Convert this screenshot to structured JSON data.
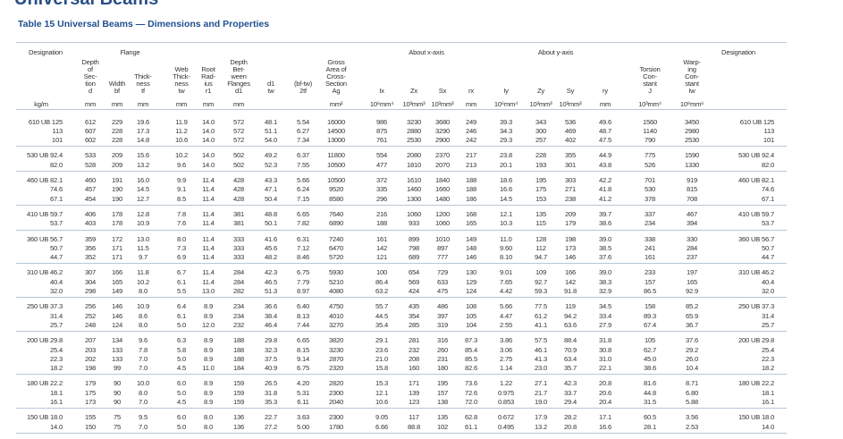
{
  "header": {
    "top_title": "Universal Beams",
    "title": "Table 15 Universal Beams — Dimensions and Properties"
  },
  "table": {
    "columns": [
      {
        "lines": [
          "Designation"
        ]
      },
      {
        "lines": [
          "Depth",
          "of",
          "Sec-",
          "tion",
          "d"
        ]
      },
      {
        "group": "Flange",
        "columns": [
          {
            "lines": [
              "Width",
              "bf"
            ]
          },
          {
            "lines": [
              "Thick-",
              "ness",
              "tf"
            ]
          }
        ]
      },
      {
        "lines": [
          "Web",
          "Thick-",
          "ness",
          "tw"
        ]
      },
      {
        "lines": [
          "Root",
          "Rad-",
          "ius",
          "r1"
        ]
      },
      {
        "lines": [
          "Depth",
          "Bet-",
          "ween",
          "Flanges",
          "d1"
        ]
      },
      {
        "lines": [
          "d1",
          "tw"
        ]
      },
      {
        "lines": [
          "(bf-tw)",
          "2tf"
        ]
      },
      {
        "lines": [
          "Gross",
          "Area of",
          "Cross-",
          "Section",
          "Ag"
        ]
      },
      {
        "group": "About x-axis",
        "columns": [
          {
            "lines": [
              "Ix"
            ]
          },
          {
            "lines": [
              "Zx"
            ]
          },
          {
            "lines": [
              "Sx"
            ]
          },
          {
            "lines": [
              "rx"
            ]
          }
        ]
      },
      {
        "group": "About y-axis",
        "columns": [
          {
            "lines": [
              "Iy"
            ]
          },
          {
            "lines": [
              "Zy"
            ]
          },
          {
            "lines": [
              "Sy"
            ]
          },
          {
            "lines": [
              "ry"
            ]
          }
        ]
      },
      {
        "lines": [
          "Torsion",
          "Con-",
          "stant",
          "J"
        ]
      },
      {
        "lines": [
          "Warp-",
          "ing",
          "Con-",
          "stant",
          "Iw"
        ]
      },
      {
        "lines": [
          "Designation"
        ]
      }
    ],
    "units": [
      "kg/m",
      "mm",
      "mm",
      "mm",
      "mm",
      "mm",
      "mm",
      null,
      null,
      "mm²",
      "10⁶mm⁴",
      "10³mm³",
      "10³mm³",
      "mm",
      "10⁶mm⁴",
      "10³mm³",
      "10³mm³",
      "mm",
      "10³mm⁴",
      "10⁹mm⁶",
      null
    ],
    "groups": [
      {
        "rows": [
          [
            "610 UB 125",
            "612",
            "229",
            "19.6",
            "11.9",
            "14.0",
            "572",
            "48.1",
            "5.54",
            "16000",
            "986",
            "3230",
            "3680",
            "249",
            "39.3",
            "343",
            "536",
            "49.6",
            "1560",
            "3450",
            "610 UB 125"
          ],
          [
            "113",
            "607",
            "228",
            "17.3",
            "11.2",
            "14.0",
            "572",
            "51.1",
            "6.27",
            "14500",
            "875",
            "2880",
            "3290",
            "246",
            "34.3",
            "300",
            "469",
            "48.7",
            "1140",
            "2980",
            "113"
          ],
          [
            "101",
            "602",
            "228",
            "14.8",
            "10.6",
            "14.0",
            "572",
            "54.0",
            "7.34",
            "13000",
            "761",
            "2530",
            "2900",
            "242",
            "29.3",
            "257",
            "402",
            "47.5",
            "790",
            "2530",
            "101"
          ]
        ]
      },
      {
        "rows": [
          [
            "530 UB 92.4",
            "533",
            "209",
            "15.6",
            "10.2",
            "14.0",
            "502",
            "49.2",
            "6.37",
            "11800",
            "554",
            "2080",
            "2370",
            "217",
            "23.8",
            "228",
            "355",
            "44.9",
            "775",
            "1590",
            "530 UB 92.4"
          ],
          [
            "82.0",
            "528",
            "209",
            "13.2",
            "9.6",
            "14.0",
            "502",
            "52.3",
            "7.55",
            "10500",
            "477",
            "1810",
            "2070",
            "213",
            "20.1",
            "193",
            "301",
            "43.8",
            "526",
            "1330",
            "82.0"
          ]
        ]
      },
      {
        "rows": [
          [
            "460 UB 82.1",
            "460",
            "191",
            "16.0",
            "9.9",
            "11.4",
            "428",
            "43.3",
            "5.66",
            "10500",
            "372",
            "1610",
            "1840",
            "188",
            "18.6",
            "195",
            "303",
            "42.2",
            "701",
            "919",
            "460 UB 82.1"
          ],
          [
            "74.6",
            "457",
            "190",
            "14.5",
            "9.1",
            "11.4",
            "428",
            "47.1",
            "6.24",
            "9520",
            "335",
            "1460",
            "1660",
            "188",
            "16.6",
            "175",
            "271",
            "41.8",
            "530",
            "815",
            "74.6"
          ],
          [
            "67.1",
            "454",
            "190",
            "12.7",
            "8.5",
            "11.4",
            "428",
            "50.4",
            "7.15",
            "8580",
            "296",
            "1300",
            "1480",
            "186",
            "14.5",
            "153",
            "238",
            "41.2",
            "378",
            "708",
            "67.1"
          ]
        ]
      },
      {
        "rows": [
          [
            "410 UB 59.7",
            "406",
            "178",
            "12.8",
            "7.8",
            "11.4",
            "381",
            "48.8",
            "6.65",
            "7640",
            "216",
            "1060",
            "1200",
            "168",
            "12.1",
            "135",
            "209",
            "39.7",
            "337",
            "467",
            "410 UB 59.7"
          ],
          [
            "53.7",
            "403",
            "178",
            "10.9",
            "7.6",
            "11.4",
            "381",
            "50.1",
            "7.82",
            "6890",
            "188",
            "933",
            "1060",
            "165",
            "10.3",
            "115",
            "179",
            "38.6",
            "234",
            "394",
            "53.7"
          ]
        ]
      },
      {
        "rows": [
          [
            "360 UB 56.7",
            "359",
            "172",
            "13.0",
            "8.0",
            "11.4",
            "333",
            "41.6",
            "6.31",
            "7240",
            "161",
            "899",
            "1010",
            "149",
            "11.0",
            "128",
            "198",
            "39.0",
            "338",
            "330",
            "360 UB 56.7"
          ],
          [
            "50.7",
            "356",
            "171",
            "11.5",
            "7.3",
            "11.4",
            "333",
            "45.6",
            "7.12",
            "6470",
            "142",
            "798",
            "897",
            "148",
            "9.60",
            "112",
            "173",
            "38.5",
            "241",
            "284",
            "50.7"
          ],
          [
            "44.7",
            "352",
            "171",
            "9.7",
            "6.9",
            "11.4",
            "333",
            "48.2",
            "8.46",
            "5720",
            "121",
            "689",
            "777",
            "146",
            "8.10",
            "94.7",
            "146",
            "37.6",
            "161",
            "237",
            "44.7"
          ]
        ]
      },
      {
        "rows": [
          [
            "310 UB 46.2",
            "307",
            "166",
            "11.8",
            "6.7",
            "11.4",
            "284",
            "42.3",
            "6.75",
            "5930",
            "100",
            "654",
            "729",
            "130",
            "9.01",
            "109",
            "166",
            "39.0",
            "233",
            "197",
            "310 UB 46.2"
          ],
          [
            "40.4",
            "304",
            "165",
            "10.2",
            "6.1",
            "11.4",
            "284",
            "46.5",
            "7.79",
            "5210",
            "86.4",
            "569",
            "633",
            "129",
            "7.65",
            "92.7",
            "142",
            "38.3",
            "157",
            "165",
            "40.4"
          ],
          [
            "32.0",
            "298",
            "149",
            "8.0",
            "5.5",
            "13.0",
            "282",
            "51.3",
            "8.97",
            "4080",
            "63.2",
            "424",
            "475",
            "124",
            "4.42",
            "59.3",
            "91.8",
            "32.9",
            "86.5",
            "92.9",
            "32.0"
          ]
        ]
      },
      {
        "rows": [
          [
            "250 UB 37.3",
            "256",
            "146",
            "10.9",
            "6.4",
            "8.9",
            "234",
            "36.6",
            "6.40",
            "4750",
            "55.7",
            "435",
            "486",
            "108",
            "5.66",
            "77.5",
            "119",
            "34.5",
            "158",
            "85.2",
            "250 UB 37.3"
          ],
          [
            "31.4",
            "252",
            "146",
            "8.6",
            "6.1",
            "8.9",
            "234",
            "38.4",
            "8.13",
            "4010",
            "44.5",
            "354",
            "397",
            "105",
            "4.47",
            "61.2",
            "94.2",
            "33.4",
            "89.3",
            "65.9",
            "31.4"
          ],
          [
            "25.7",
            "248",
            "124",
            "8.0",
            "5.0",
            "12.0",
            "232",
            "46.4",
            "7.44",
            "3270",
            "35.4",
            "285",
            "319",
            "104",
            "2.55",
            "41.1",
            "63.6",
            "27.9",
            "67.4",
            "36.7",
            "25.7"
          ]
        ]
      },
      {
        "rows": [
          [
            "200 UB 29.8",
            "207",
            "134",
            "9.6",
            "6.3",
            "8.9",
            "188",
            "29.8",
            "6.65",
            "3820",
            "29.1",
            "281",
            "316",
            "87.3",
            "3.86",
            "57.5",
            "88.4",
            "31.8",
            "105",
            "37.6",
            "200 UB 29.8"
          ],
          [
            "25.4",
            "203",
            "133",
            "7.8",
            "5.8",
            "8.9",
            "188",
            "32.3",
            "8.15",
            "3230",
            "23.6",
            "232",
            "260",
            "85.4",
            "3.06",
            "46.1",
            "70.9",
            "30.8",
            "62.7",
            "29.2",
            "25.4"
          ],
          [
            "22.3",
            "202",
            "133",
            "7.0",
            "5.0",
            "8.9",
            "188",
            "37.5",
            "9.14",
            "2870",
            "21.0",
            "208",
            "231",
            "85.5",
            "2.75",
            "41.3",
            "63.4",
            "31.0",
            "45.0",
            "26.0",
            "22.3"
          ],
          [
            "18.2",
            "198",
            "99",
            "7.0",
            "4.5",
            "11.0",
            "184",
            "40.9",
            "6.75",
            "2320",
            "15.8",
            "160",
            "180",
            "82.6",
            "1.14",
            "23.0",
            "35.7",
            "22.1",
            "38.6",
            "10.4",
            "18.2"
          ]
        ]
      },
      {
        "rows": [
          [
            "180 UB 22.2",
            "179",
            "90",
            "10.0",
            "6.0",
            "8.9",
            "159",
            "26.5",
            "4.20",
            "2820",
            "15.3",
            "171",
            "195",
            "73.6",
            "1.22",
            "27.1",
            "42.3",
            "20.8",
            "81.6",
            "8.71",
            "180 UB 22.2"
          ],
          [
            "18.1",
            "175",
            "90",
            "8.0",
            "5.0",
            "8.9",
            "159",
            "31.8",
            "5.31",
            "2300",
            "12.1",
            "139",
            "157",
            "72.6",
            "0.975",
            "21.7",
            "33.7",
            "20.6",
            "44.8",
            "6.80",
            "18.1"
          ],
          [
            "16.1",
            "173",
            "90",
            "7.0",
            "4.5",
            "8.9",
            "159",
            "35.3",
            "6.11",
            "2040",
            "10.6",
            "123",
            "138",
            "72.0",
            "0.853",
            "19.0",
            "29.4",
            "20.4",
            "31.5",
            "5.88",
            "16.1"
          ]
        ]
      },
      {
        "rows": [
          [
            "150 UB 18.0",
            "155",
            "75",
            "9.5",
            "6.0",
            "8.0",
            "136",
            "22.7",
            "3.63",
            "2300",
            "9.05",
            "117",
            "135",
            "62.8",
            "0.672",
            "17.9",
            "28.2",
            "17.1",
            "60.5",
            "3.56",
            "150 UB 18.0"
          ],
          [
            "14.0",
            "150",
            "75",
            "7.0",
            "5.0",
            "8.0",
            "136",
            "27.2",
            "5.00",
            "1780",
            "6.66",
            "88.8",
            "102",
            "61.1",
            "0.495",
            "13.2",
            "20.8",
            "16.6",
            "28.1",
            "2.53",
            "14.0"
          ]
        ]
      }
    ]
  }
}
